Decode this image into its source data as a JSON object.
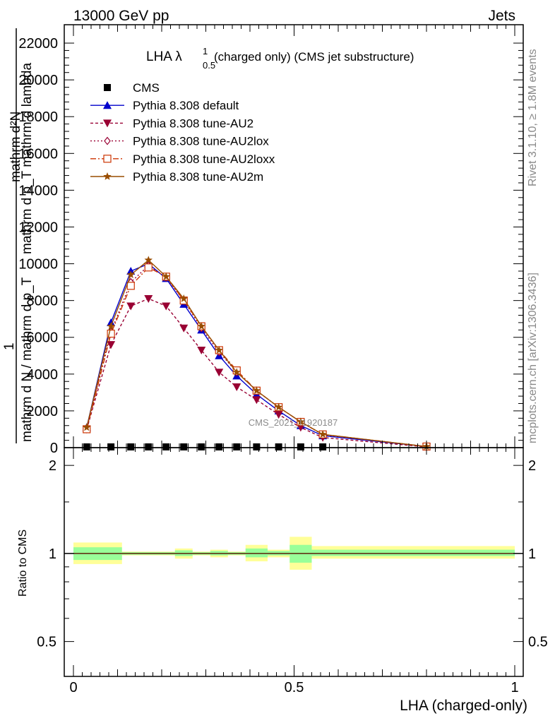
{
  "header": {
    "left": "13000 GeV pp",
    "right": "Jets"
  },
  "side_labels": {
    "rivet": "Rivet 3.1.10, ≥ 1.8M events",
    "mcplots": "mcplots.cern.ch [arXiv:1306.3436]"
  },
  "plot_title": "(charged only) (CMS jet substructure)",
  "plot_title_main": "LHA λ",
  "plot_title_sup": "1",
  "plot_title_sub": "0.5",
  "watermark": "CMS_2021_I1920187",
  "main_ylabel": {
    "numerator_top": "mathrm d²N",
    "numerator_bottom": "mathrm d p_T mathrm d lambda",
    "prefactor": "1",
    "denominator": "mathrm d N / mathrm d p_T"
  },
  "ratio_ylabel": "Ratio to CMS",
  "xlabel": "LHA (charged-only)",
  "legend": [
    {
      "label": "CMS",
      "color": "#000000",
      "marker": "square",
      "dash": ""
    },
    {
      "label": "Pythia 8.308 default",
      "color": "#0000cc",
      "marker": "triangle-up",
      "dash": ""
    },
    {
      "label": "Pythia 8.308 tune-AU2",
      "color": "#990033",
      "marker": "triangle-down",
      "dash": "4,3"
    },
    {
      "label": "Pythia 8.308 tune-AU2lox",
      "color": "#990033",
      "marker": "diamond-open",
      "dash": "2,3"
    },
    {
      "label": "Pythia 8.308 tune-AU2loxx",
      "color": "#cc3300",
      "marker": "square-open",
      "dash": "8,3,2,3"
    },
    {
      "label": "Pythia 8.308 tune-AU2m",
      "color": "#994d00",
      "marker": "star",
      "dash": ""
    }
  ],
  "chart_data": [
    {
      "type": "line",
      "panel": "main",
      "xlim": [
        0,
        1
      ],
      "ylim": [
        0,
        23000
      ],
      "yticks": [
        0,
        2000,
        4000,
        6000,
        8000,
        10000,
        12000,
        14000,
        16000,
        18000,
        20000,
        22000
      ],
      "ytick_labels": [
        "0",
        "2000",
        "4000",
        "6000",
        "8000",
        "10000",
        "12000",
        "14000",
        "16000",
        "18000",
        "20000",
        "22000"
      ],
      "x": [
        0.03,
        0.085,
        0.13,
        0.17,
        0.21,
        0.25,
        0.29,
        0.33,
        0.37,
        0.415,
        0.465,
        0.515,
        0.565,
        0.8
      ],
      "series": [
        {
          "name": "CMS",
          "values": [
            40,
            40,
            40,
            40,
            40,
            40,
            40,
            40,
            40,
            40,
            40,
            40,
            40,
            null
          ]
        },
        {
          "name": "Pythia 8.308 default",
          "values": [
            1100,
            6800,
            9600,
            10000,
            9200,
            7800,
            6400,
            5000,
            3900,
            2900,
            2000,
            1200,
            650,
            60
          ]
        },
        {
          "name": "Pythia 8.308 tune-AU2",
          "values": [
            1000,
            5600,
            7700,
            8100,
            7700,
            6500,
            5300,
            4100,
            3300,
            2600,
            1800,
            1100,
            550,
            40
          ]
        },
        {
          "name": "Pythia 8.308 tune-AU2lox",
          "values": [
            1050,
            6300,
            9000,
            9900,
            9250,
            8000,
            6500,
            5200,
            4100,
            3100,
            2200,
            1400,
            700,
            60
          ]
        },
        {
          "name": "Pythia 8.308 tune-AU2loxx",
          "values": [
            1000,
            6200,
            8800,
            9800,
            9300,
            8000,
            6600,
            5300,
            4200,
            3100,
            2200,
            1400,
            720,
            60
          ]
        },
        {
          "name": "Pythia 8.308 tune-AU2m",
          "values": [
            1100,
            6600,
            9400,
            10200,
            9300,
            8100,
            6600,
            5300,
            4100,
            3100,
            2200,
            1400,
            720,
            60
          ]
        }
      ]
    },
    {
      "type": "area",
      "panel": "ratio",
      "xlim": [
        0,
        1
      ],
      "ylim": [
        0.38,
        2.3
      ],
      "log_y": true,
      "yticks": [
        0.5,
        1,
        2
      ],
      "ytick_labels": [
        "0.5",
        "1",
        "2"
      ],
      "xticks": [
        0,
        0.5,
        1
      ],
      "xtick_labels": [
        "0",
        "0.5",
        "1"
      ],
      "reference": 1,
      "bins": [
        {
          "x0": 0.0,
          "x1": 0.11,
          "inner": [
            0.95,
            1.05
          ],
          "outer": [
            0.92,
            1.09
          ]
        },
        {
          "x0": 0.11,
          "x1": 0.23,
          "inner": [
            0.99,
            1.01
          ],
          "outer": [
            0.985,
            1.015
          ]
        },
        {
          "x0": 0.23,
          "x1": 0.27,
          "inner": [
            0.98,
            1.025
          ],
          "outer": [
            0.96,
            1.04
          ]
        },
        {
          "x0": 0.27,
          "x1": 0.31,
          "inner": [
            0.99,
            1.01
          ],
          "outer": [
            0.985,
            1.015
          ]
        },
        {
          "x0": 0.31,
          "x1": 0.35,
          "inner": [
            0.985,
            1.02
          ],
          "outer": [
            0.97,
            1.03
          ]
        },
        {
          "x0": 0.35,
          "x1": 0.39,
          "inner": [
            0.99,
            1.01
          ],
          "outer": [
            0.985,
            1.015
          ]
        },
        {
          "x0": 0.39,
          "x1": 0.44,
          "inner": [
            0.97,
            1.04
          ],
          "outer": [
            0.94,
            1.07
          ]
        },
        {
          "x0": 0.44,
          "x1": 0.49,
          "inner": [
            0.985,
            1.02
          ],
          "outer": [
            0.97,
            1.03
          ]
        },
        {
          "x0": 0.49,
          "x1": 0.54,
          "inner": [
            0.93,
            1.07
          ],
          "outer": [
            0.88,
            1.14
          ]
        },
        {
          "x0": 0.54,
          "x1": 1.0,
          "inner": [
            0.98,
            1.03
          ],
          "outer": [
            0.96,
            1.06
          ]
        }
      ]
    }
  ]
}
